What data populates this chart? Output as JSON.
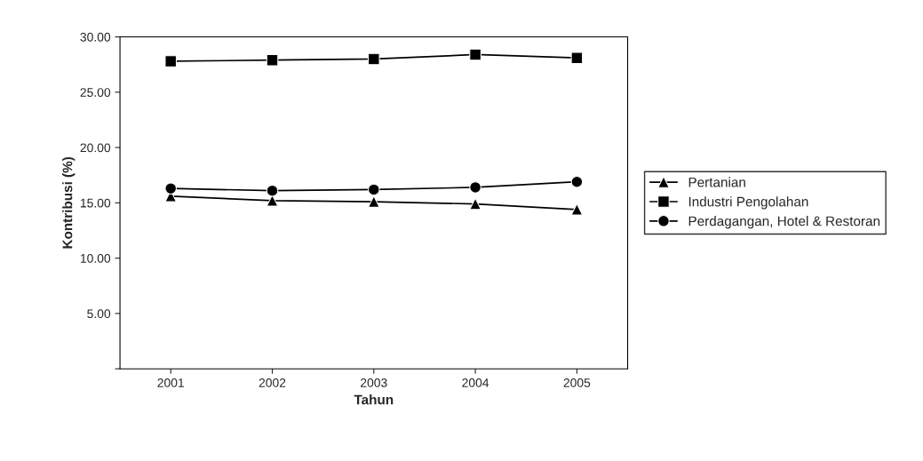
{
  "chart_data": {
    "type": "line",
    "xlabel": "Tahun",
    "ylabel": "Kontribusi (%)",
    "categories": [
      "2001",
      "2002",
      "2003",
      "2004",
      "2005"
    ],
    "series": [
      {
        "name": "Pertanian",
        "color": "#000000",
        "marker": "triangle",
        "values": [
          15.6,
          15.2,
          15.1,
          14.9,
          14.4
        ]
      },
      {
        "name": "Industri Pengolahan",
        "color": "#000000",
        "marker": "square",
        "values": [
          27.8,
          27.9,
          28.0,
          28.4,
          28.1
        ]
      },
      {
        "name": "Perdagangan, Hotel & Restoran",
        "color": "#000000",
        "marker": "circle",
        "values": [
          16.3,
          16.1,
          16.2,
          16.4,
          16.9
        ]
      }
    ],
    "ylim": [
      0,
      30
    ],
    "yticks": [
      {
        "value": 0,
        "label": null
      },
      {
        "value": 5,
        "label": "5.00"
      },
      {
        "value": 10,
        "label": "10.00"
      },
      {
        "value": 15,
        "label": "15.00"
      },
      {
        "value": 20,
        "label": "20.00"
      },
      {
        "value": 25,
        "label": "25.00"
      },
      {
        "value": 30,
        "label": "30.00"
      }
    ],
    "grid": false,
    "legend": "right"
  }
}
